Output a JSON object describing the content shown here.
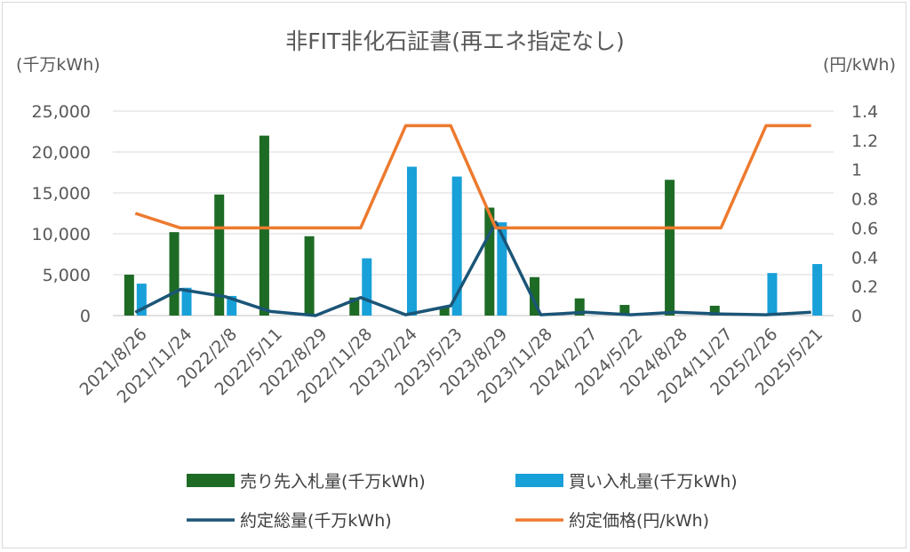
{
  "chart_data": {
    "type": "bar",
    "title": "非FIT非化石証書(再エネ指定なし)",
    "y_left_unit": "(千万kWh)",
    "y_right_unit": "(円/kWh)",
    "ylim_left": [
      0,
      25000
    ],
    "ylim_right": [
      0,
      1.4
    ],
    "y_left_ticks": [
      "0",
      "5,000",
      "10,000",
      "15,000",
      "20,000",
      "25,000"
    ],
    "y_right_ticks": [
      "0",
      "0.2",
      "0.4",
      "0.6",
      "0.8",
      "1",
      "1.2",
      "1.4"
    ],
    "grid": true,
    "legend_position": "bottom",
    "categories": [
      "2021/8/26",
      "2021/11/24",
      "2022/2/8",
      "2022/5/11",
      "2022/8/29",
      "2022/11/28",
      "2023/2/24",
      "2023/5/23",
      "2023/8/29",
      "2023/11/28",
      "2024/2/27",
      "2024/5/22",
      "2024/8/28",
      "2024/11/27",
      "2025/2/26",
      "2025/5/21"
    ],
    "series": [
      {
        "name": "売り先入札量(千万kWh)",
        "type": "bar",
        "axis": "left",
        "color": "#1e6b25",
        "values": [
          5000,
          10200,
          14800,
          22000,
          9700,
          2200,
          0,
          1000,
          13200,
          4700,
          2100,
          1300,
          16600,
          1200,
          0,
          0
        ]
      },
      {
        "name": "買い入札量(千万kWh)",
        "type": "bar",
        "axis": "left",
        "color": "#18a0d9",
        "values": [
          3900,
          3400,
          2400,
          0,
          0,
          7000,
          18200,
          17000,
          11400,
          0,
          0,
          0,
          0,
          0,
          5200,
          6300
        ]
      },
      {
        "name": "約定総量(千万kWh)",
        "type": "line",
        "axis": "left",
        "color": "#1b5577",
        "values": [
          400,
          3200,
          2300,
          500,
          0,
          2200,
          100,
          1200,
          11400,
          100,
          400,
          100,
          400,
          200,
          100,
          400
        ]
      },
      {
        "name": "約定価格(円/kWh)",
        "type": "line",
        "axis": "right",
        "color": "#ed7a2e",
        "values": [
          0.7,
          0.6,
          0.6,
          0.6,
          0.6,
          0.6,
          1.3,
          1.3,
          0.6,
          0.6,
          0.6,
          0.6,
          0.6,
          0.6,
          1.3,
          1.3
        ]
      }
    ]
  }
}
